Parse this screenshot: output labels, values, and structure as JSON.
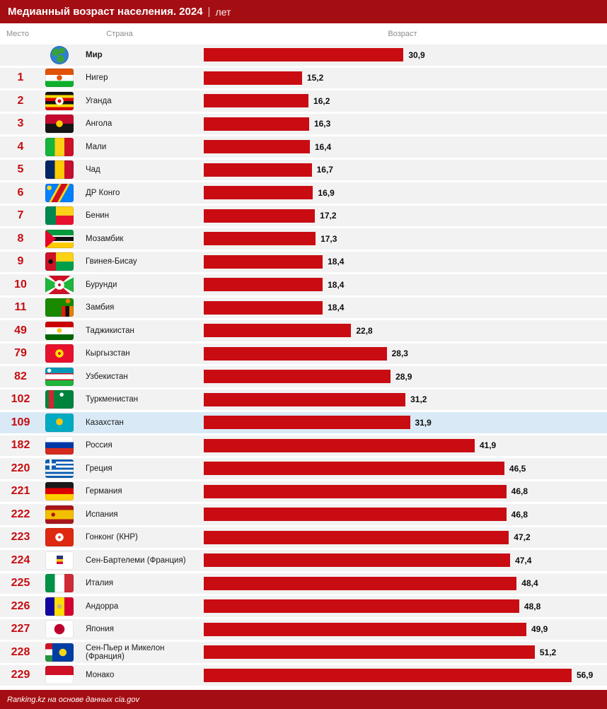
{
  "header": {
    "title": "Медианный возраст населения. 2024",
    "separator": "|",
    "unit": "лет"
  },
  "columns": {
    "rank": "Место",
    "country": "Страна",
    "value": "Возраст"
  },
  "footer": {
    "credit": "Ranking.kz на основе данных cia.gov"
  },
  "colors": {
    "header_bg": "#a40e13",
    "bar": "#c90c12",
    "rank_text": "#c60c11",
    "row_bg": "#f2f2f2",
    "highlight_row_bg": "#d9eaf6"
  },
  "chart_data": {
    "type": "bar",
    "orientation": "horizontal",
    "title": "Медианный возраст населения. 2024 | лет",
    "value_axis_label": "Возраст",
    "unit": "лет",
    "xlim": [
      0,
      58
    ],
    "rows": [
      {
        "rank": "",
        "country": "Мир",
        "value": 30.9,
        "label": "30,9",
        "flag": "world",
        "bold": true
      },
      {
        "rank": "1",
        "country": "Нигер",
        "value": 15.2,
        "label": "15,2",
        "flag": "niger"
      },
      {
        "rank": "2",
        "country": "Уганда",
        "value": 16.2,
        "label": "16,2",
        "flag": "uganda"
      },
      {
        "rank": "3",
        "country": "Ангола",
        "value": 16.3,
        "label": "16,3",
        "flag": "angola"
      },
      {
        "rank": "4",
        "country": "Мали",
        "value": 16.4,
        "label": "16,4",
        "flag": "mali"
      },
      {
        "rank": "5",
        "country": "Чад",
        "value": 16.7,
        "label": "16,7",
        "flag": "chad"
      },
      {
        "rank": "6",
        "country": "ДР Конго",
        "value": 16.9,
        "label": "16,9",
        "flag": "drcongo"
      },
      {
        "rank": "7",
        "country": "Бенин",
        "value": 17.2,
        "label": "17,2",
        "flag": "benin"
      },
      {
        "rank": "8",
        "country": "Мозамбик",
        "value": 17.3,
        "label": "17,3",
        "flag": "mozambique"
      },
      {
        "rank": "9",
        "country": "Гвинея-Бисау",
        "value": 18.4,
        "label": "18,4",
        "flag": "guineabissau"
      },
      {
        "rank": "10",
        "country": "Бурунди",
        "value": 18.4,
        "label": "18,4",
        "flag": "burundi"
      },
      {
        "rank": "11",
        "country": "Замбия",
        "value": 18.4,
        "label": "18,4",
        "flag": "zambia"
      },
      {
        "rank": "49",
        "country": "Таджикистан",
        "value": 22.8,
        "label": "22,8",
        "flag": "tajikistan"
      },
      {
        "rank": "79",
        "country": "Кыргызстан",
        "value": 28.3,
        "label": "28,3",
        "flag": "kyrgyzstan"
      },
      {
        "rank": "82",
        "country": "Узбекистан",
        "value": 28.9,
        "label": "28,9",
        "flag": "uzbekistan"
      },
      {
        "rank": "102",
        "country": "Туркменистан",
        "value": 31.2,
        "label": "31,2",
        "flag": "turkmenistan"
      },
      {
        "rank": "109",
        "country": "Казахстан",
        "value": 31.9,
        "label": "31,9",
        "flag": "kazakhstan",
        "highlight": true
      },
      {
        "rank": "182",
        "country": "Россия",
        "value": 41.9,
        "label": "41,9",
        "flag": "russia"
      },
      {
        "rank": "220",
        "country": "Греция",
        "value": 46.5,
        "label": "46,5",
        "flag": "greece"
      },
      {
        "rank": "221",
        "country": "Германия",
        "value": 46.8,
        "label": "46,8",
        "flag": "germany"
      },
      {
        "rank": "222",
        "country": "Испания",
        "value": 46.8,
        "label": "46,8",
        "flag": "spain"
      },
      {
        "rank": "223",
        "country": "Гонконг (КНР)",
        "value": 47.2,
        "label": "47,2",
        "flag": "hongkong"
      },
      {
        "rank": "224",
        "country": "Сен-Бартелеми (Франция)",
        "value": 47.4,
        "label": "47,4",
        "flag": "saintbarthelemy"
      },
      {
        "rank": "225",
        "country": "Италия",
        "value": 48.4,
        "label": "48,4",
        "flag": "italy"
      },
      {
        "rank": "226",
        "country": "Андорра",
        "value": 48.8,
        "label": "48,8",
        "flag": "andorra"
      },
      {
        "rank": "227",
        "country": "Япония",
        "value": 49.9,
        "label": "49,9",
        "flag": "japan"
      },
      {
        "rank": "228",
        "country": "Сен-Пьер и Микелон (Франция)",
        "value": 51.2,
        "label": "51,2",
        "flag": "saintpierre"
      },
      {
        "rank": "229",
        "country": "Монако",
        "value": 56.9,
        "label": "56,9",
        "flag": "monaco"
      }
    ]
  }
}
